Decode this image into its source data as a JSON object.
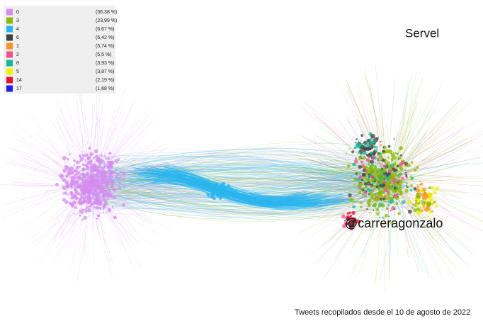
{
  "title": "Servel",
  "highlight_label": "@carreragonzalo",
  "footer": "Tweets recopilados desde el 10 de agosto de 2022",
  "legend": [
    {
      "name": "0",
      "share": "(36,38 %)",
      "color": "#d68cef"
    },
    {
      "name": "3",
      "share": "(23,99 %)",
      "color": "#8cb800"
    },
    {
      "name": "4",
      "share": "(6,67 %)",
      "color": "#29b5ef"
    },
    {
      "name": "6",
      "share": "(6,42 %)",
      "color": "#404040"
    },
    {
      "name": "1",
      "share": "(5,74 %)",
      "color": "#f7931e"
    },
    {
      "name": "2",
      "share": "(5,5 %)",
      "color": "#ef4f8b"
    },
    {
      "name": "8",
      "share": "(3,93 %)",
      "color": "#16b894"
    },
    {
      "name": "5",
      "share": "(3,87 %)",
      "color": "#f2f200"
    },
    {
      "name": "14",
      "share": "(2,19 %)",
      "color": "#e5102f"
    },
    {
      "name": "17",
      "share": "(1,68 %)",
      "color": "#1f1fe0"
    }
  ]
}
